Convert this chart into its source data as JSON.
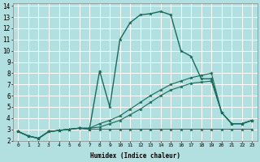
{
  "title": "",
  "xlabel": "Humidex (Indice chaleur)",
  "xlim": [
    -0.5,
    23.5
  ],
  "ylim": [
    2,
    14.2
  ],
  "yticks": [
    2,
    3,
    4,
    5,
    6,
    7,
    8,
    9,
    10,
    11,
    12,
    13,
    14
  ],
  "xticks": [
    0,
    1,
    2,
    3,
    4,
    5,
    6,
    7,
    8,
    9,
    10,
    11,
    12,
    13,
    14,
    15,
    16,
    17,
    18,
    19,
    20,
    21,
    22,
    23
  ],
  "bg_color": "#b2dfdf",
  "grid_color": "#ffffff",
  "line_color": "#1a6b5a",
  "curve_main": [
    2.8,
    2.4,
    2.2,
    2.8,
    2.9,
    3.0,
    3.1,
    3.0,
    8.2,
    5.0,
    11.0,
    12.5,
    13.2,
    13.3,
    13.5,
    13.2,
    10.0,
    9.5,
    7.5,
    7.5,
    4.5,
    3.5,
    3.5,
    3.8
  ],
  "curve_flat": [
    2.8,
    2.4,
    2.2,
    2.8,
    2.9,
    3.0,
    3.1,
    3.0,
    3.0,
    3.0,
    3.0,
    3.0,
    3.0,
    3.0,
    3.0,
    3.0,
    3.0,
    3.0,
    3.0,
    3.0,
    3.0,
    3.0,
    3.0,
    3.0
  ],
  "curve_rise1": [
    2.8,
    2.4,
    2.2,
    2.8,
    2.9,
    3.0,
    3.1,
    3.1,
    3.5,
    3.8,
    4.2,
    4.8,
    5.4,
    6.0,
    6.5,
    7.0,
    7.3,
    7.6,
    7.8,
    8.0,
    4.5,
    3.5,
    3.5,
    3.8
  ],
  "curve_rise2": [
    2.8,
    2.4,
    2.2,
    2.8,
    2.9,
    3.0,
    3.1,
    3.1,
    3.2,
    3.5,
    3.8,
    4.3,
    4.8,
    5.4,
    6.0,
    6.5,
    6.8,
    7.1,
    7.2,
    7.3,
    4.5,
    3.5,
    3.5,
    3.8
  ],
  "xlabel_fontsize": 5.5,
  "tick_fontsize_x": 4.5,
  "tick_fontsize_y": 5.5
}
